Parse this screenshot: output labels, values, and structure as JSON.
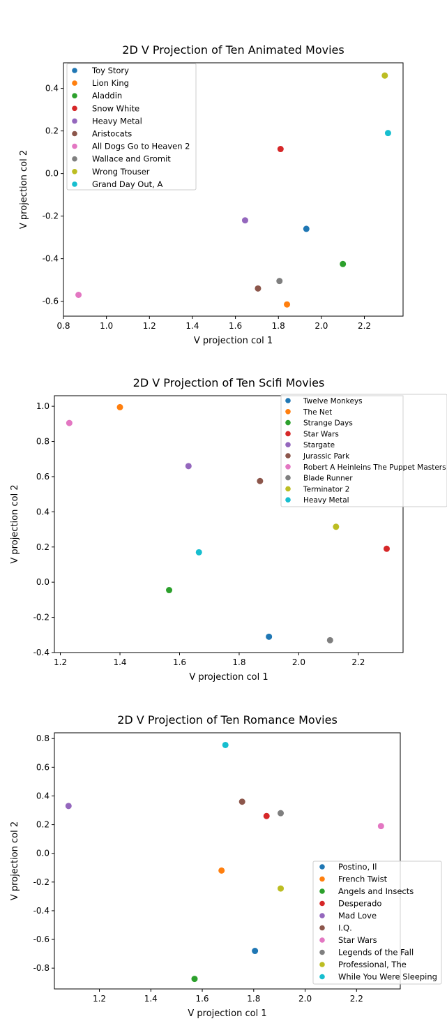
{
  "chart_data": [
    {
      "type": "scatter",
      "title": "2D V Projection of Ten Animated Movies",
      "xlabel": "V projection col 1",
      "ylabel": "V projection col 2",
      "xlim": [
        0.8,
        2.38
      ],
      "ylim": [
        -0.67,
        0.52
      ],
      "xticks": [
        "0.8",
        "1.0",
        "1.2",
        "1.4",
        "1.6",
        "1.8",
        "2.0",
        "2.2"
      ],
      "yticks": [
        "-0.6",
        "-0.4",
        "-0.2",
        "0.0",
        "0.2",
        "0.4"
      ],
      "grid": false,
      "legend_position": "upper left",
      "points": [
        {
          "label": "Toy Story",
          "x": 1.93,
          "y": -0.26,
          "color": "#1f77b4"
        },
        {
          "label": "Lion King",
          "x": 1.84,
          "y": -0.615,
          "color": "#ff7f0e"
        },
        {
          "label": "Aladdin",
          "x": 2.1,
          "y": -0.425,
          "color": "#2ca02c"
        },
        {
          "label": "Snow White",
          "x": 1.81,
          "y": 0.115,
          "color": "#d62728"
        },
        {
          "label": "Heavy Metal",
          "x": 1.645,
          "y": -0.22,
          "color": "#9467bd"
        },
        {
          "label": "Aristocats",
          "x": 1.705,
          "y": -0.54,
          "color": "#8c564b"
        },
        {
          "label": "All Dogs Go to Heaven 2",
          "x": 0.87,
          "y": -0.57,
          "color": "#e377c2"
        },
        {
          "label": "Wallace and Gromit",
          "x": 1.805,
          "y": -0.505,
          "color": "#7f7f7f"
        },
        {
          "label": "Wrong Trouser",
          "x": 2.295,
          "y": 0.46,
          "color": "#bcbd22"
        },
        {
          "label": "Grand Day Out, A",
          "x": 2.31,
          "y": 0.19,
          "color": "#17becf"
        }
      ]
    },
    {
      "type": "scatter",
      "title": "2D V Projection of Ten Scifi Movies",
      "xlabel": "V projection col 1",
      "ylabel": "V projection col 2",
      "xlim": [
        1.18,
        2.35
      ],
      "ylim": [
        -0.4,
        1.06
      ],
      "xticks": [
        "1.2",
        "1.4",
        "1.6",
        "1.8",
        "2.0",
        "2.2"
      ],
      "yticks": [
        "-0.4",
        "-0.2",
        "0.0",
        "0.2",
        "0.4",
        "0.6",
        "0.8",
        "1.0"
      ],
      "grid": false,
      "legend_position": "upper right",
      "points": [
        {
          "label": "Twelve Monkeys",
          "x": 1.9,
          "y": -0.31,
          "color": "#1f77b4"
        },
        {
          "label": "The Net",
          "x": 1.4,
          "y": 0.995,
          "color": "#ff7f0e"
        },
        {
          "label": "Strange Days",
          "x": 1.565,
          "y": -0.045,
          "color": "#2ca02c"
        },
        {
          "label": "Star Wars",
          "x": 2.295,
          "y": 0.19,
          "color": "#d62728"
        },
        {
          "label": "Stargate",
          "x": 1.63,
          "y": 0.66,
          "color": "#9467bd"
        },
        {
          "label": "Jurassic Park",
          "x": 1.87,
          "y": 0.575,
          "color": "#8c564b"
        },
        {
          "label": "Robert A Heinleins The Puppet Masters",
          "x": 1.23,
          "y": 0.905,
          "color": "#e377c2"
        },
        {
          "label": "Blade Runner",
          "x": 2.105,
          "y": -0.33,
          "color": "#7f7f7f"
        },
        {
          "label": "Terminator 2",
          "x": 2.125,
          "y": 0.315,
          "color": "#bcbd22"
        },
        {
          "label": "Heavy Metal",
          "x": 1.665,
          "y": 0.17,
          "color": "#17becf"
        }
      ]
    },
    {
      "type": "scatter",
      "title": "2D V Projection of Ten Romance Movies",
      "xlabel": "V projection col 1",
      "ylabel": "V projection col 2",
      "xlim": [
        1.025,
        2.37
      ],
      "ylim": [
        -0.945,
        0.84
      ],
      "xticks": [
        "1.2",
        "1.4",
        "1.6",
        "1.8",
        "2.0",
        "2.2"
      ],
      "yticks": [
        "-0.8",
        "-0.6",
        "-0.4",
        "-0.2",
        "0.0",
        "0.2",
        "0.4",
        "0.6",
        "0.8"
      ],
      "grid": false,
      "legend_position": "lower right",
      "points": [
        {
          "label": "Postino, Il",
          "x": 1.805,
          "y": -0.68,
          "color": "#1f77b4"
        },
        {
          "label": "French Twist",
          "x": 1.675,
          "y": -0.12,
          "color": "#ff7f0e"
        },
        {
          "label": "Angels and Insects",
          "x": 1.57,
          "y": -0.875,
          "color": "#2ca02c"
        },
        {
          "label": "Desperado",
          "x": 1.85,
          "y": 0.26,
          "color": "#d62728"
        },
        {
          "label": "Mad Love",
          "x": 1.08,
          "y": 0.33,
          "color": "#9467bd"
        },
        {
          "label": "I.Q.",
          "x": 1.755,
          "y": 0.36,
          "color": "#8c564b"
        },
        {
          "label": "Star Wars",
          "x": 2.295,
          "y": 0.19,
          "color": "#e377c2"
        },
        {
          "label": "Legends of the Fall",
          "x": 1.905,
          "y": 0.28,
          "color": "#7f7f7f"
        },
        {
          "label": "Professional, The",
          "x": 1.905,
          "y": -0.245,
          "color": "#bcbd22"
        },
        {
          "label": "While You Were Sleeping",
          "x": 1.69,
          "y": 0.755,
          "color": "#17becf"
        }
      ]
    }
  ]
}
